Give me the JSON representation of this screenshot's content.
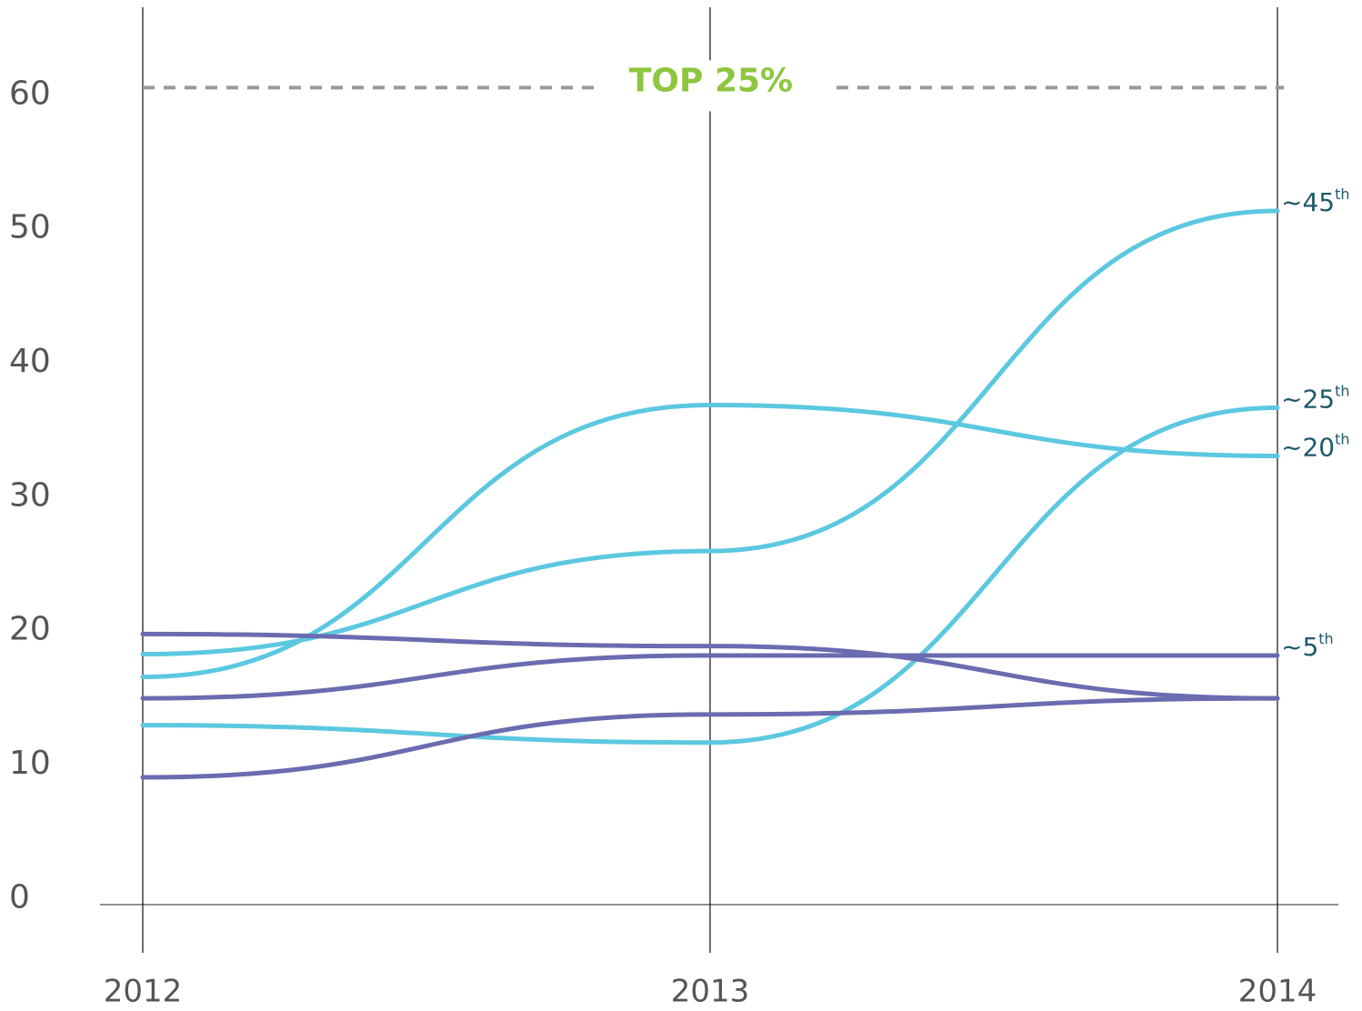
{
  "chart_data": {
    "type": "line",
    "categories": [
      "2012",
      "2013",
      "2014"
    ],
    "series": [
      {
        "name": "~45",
        "name_sup": "th",
        "color": "#5bc8e0",
        "values": [
          17.7,
          25.4,
          50.8
        ]
      },
      {
        "name": "~20",
        "name_sup": "th",
        "color": "#5bc8e0",
        "values": [
          16.0,
          36.3,
          32.5
        ]
      },
      {
        "name": "~25",
        "name_sup": "th",
        "color": "#5bc8e0",
        "values": [
          12.4,
          11.1,
          36.1
        ]
      },
      {
        "color": "#6b6bb0",
        "values": [
          19.2,
          18.3,
          14.4
        ]
      },
      {
        "name": "~5",
        "name_sup": "th",
        "color": "#6b6bb0",
        "values": [
          14.4,
          17.6,
          17.6
        ]
      },
      {
        "color": "#6b6bb0",
        "values": [
          8.5,
          13.2,
          14.4
        ]
      }
    ],
    "ylim": [
      -1,
      66
    ],
    "yticks": [
      0,
      10,
      20,
      30,
      40,
      50,
      60
    ],
    "annotations": [
      {
        "text": "TOP 25%",
        "value": 60,
        "color": "#8dc63f"
      }
    ]
  }
}
